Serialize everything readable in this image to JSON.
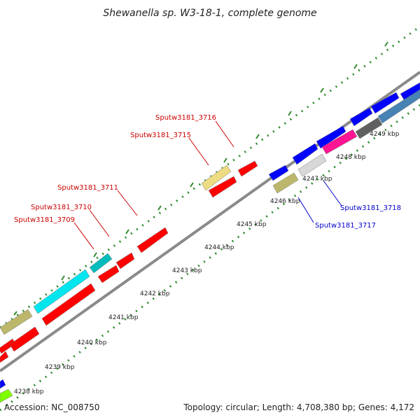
{
  "title": "Shewanella sp. W3-18-1, complete genome",
  "footer": {
    "accession": "Accession: NC_008750",
    "topology": "Topology: circular; Length: 4,708,380 bp; Genes: 4,172"
  },
  "colors": {
    "backbone": "#8a8a8a",
    "tick": "#2e8b2e",
    "label_top": "#cc0000",
    "label_bottom": "#0000cc"
  },
  "ticks": [
    {
      "label": "4238 kbp"
    },
    {
      "label": "4239 kbp"
    },
    {
      "label": "4240 kbp"
    },
    {
      "label": "4241 kbp"
    },
    {
      "label": "4242 kbp"
    },
    {
      "label": "4243 kbp"
    },
    {
      "label": "4244 kbp"
    },
    {
      "label": "4245 kbp"
    },
    {
      "label": "4246 kbp"
    },
    {
      "label": "4247 kbp"
    },
    {
      "label": "4248 kbp"
    },
    {
      "label": "4249 kbp"
    }
  ],
  "gene_labels": [
    {
      "text": "Sputw3181_3716",
      "strand": "top"
    },
    {
      "text": "Sputw3181_3715",
      "strand": "top"
    },
    {
      "text": "Sputw3181_3711",
      "strand": "top"
    },
    {
      "text": "Sputw3181_3710",
      "strand": "top"
    },
    {
      "text": "Sputw3181_3709",
      "strand": "top"
    },
    {
      "text": "Sputw3181_3718",
      "strand": "bottom"
    },
    {
      "text": "Sputw3181_3717",
      "strand": "bottom"
    }
  ]
}
